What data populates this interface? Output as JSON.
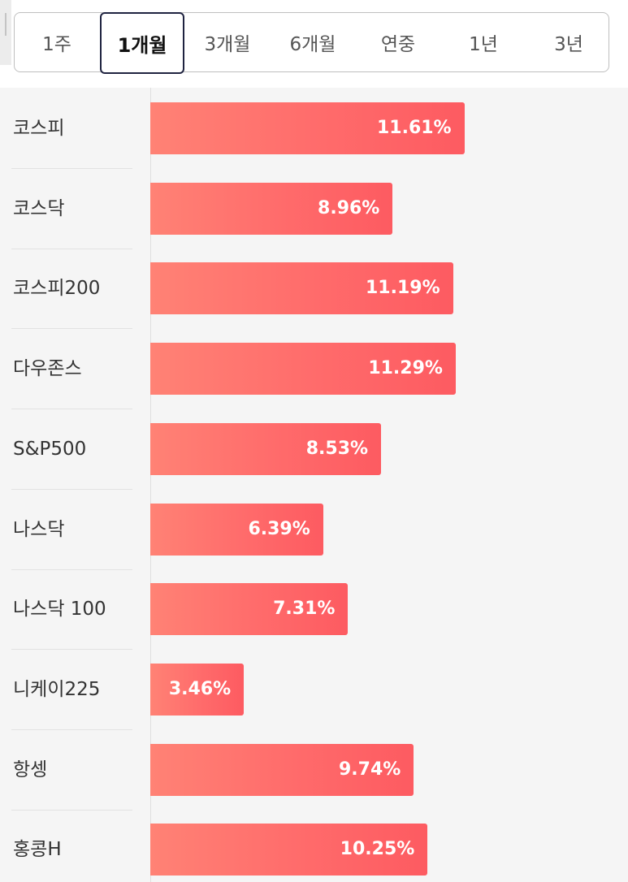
{
  "tabs": [
    {
      "label": "1주",
      "active": false
    },
    {
      "label": "1개월",
      "active": true
    },
    {
      "label": "3개월",
      "active": false
    },
    {
      "label": "6개월",
      "active": false
    },
    {
      "label": "연중",
      "active": false
    },
    {
      "label": "1년",
      "active": false
    },
    {
      "label": "3년",
      "active": false
    }
  ],
  "chart_data": {
    "type": "bar",
    "orientation": "horizontal",
    "categories": [
      "코스피",
      "코스닥",
      "코스피200",
      "다우존스",
      "S&P500",
      "나스닥",
      "나스닥 100",
      "니케이225",
      "항셍",
      "홍콩H"
    ],
    "values": [
      11.61,
      8.96,
      11.19,
      11.29,
      8.53,
      6.39,
      7.31,
      3.46,
      9.74,
      10.25
    ],
    "value_labels": [
      "11.61%",
      "8.96%",
      "11.19%",
      "11.29%",
      "8.53%",
      "6.39%",
      "7.31%",
      "3.46%",
      "9.74%",
      "10.25%"
    ],
    "unit": "%",
    "bar_color": "#ff6b6b"
  }
}
